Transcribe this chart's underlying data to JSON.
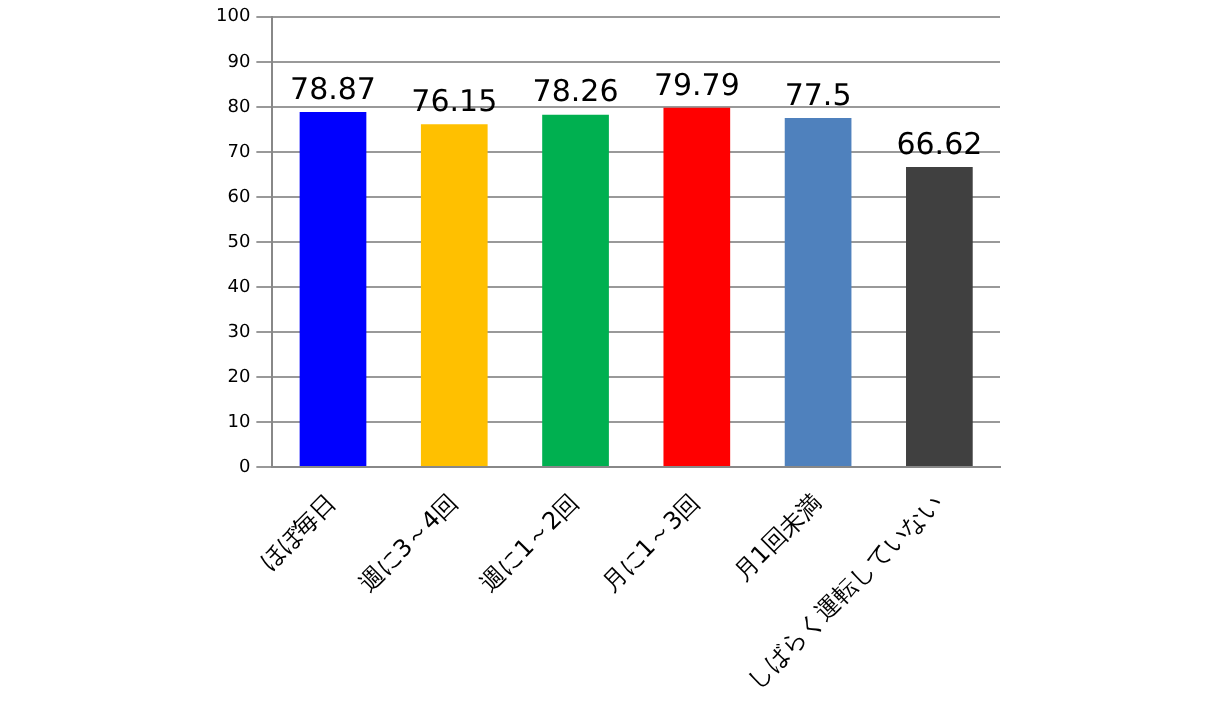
{
  "chart_data": {
    "type": "bar",
    "categories": [
      "ほぼ毎日",
      "週に3～4回",
      "週に1～2回",
      "月に1～3回",
      "月1回未満",
      "しばらく運転していない"
    ],
    "values": [
      78.87,
      76.15,
      78.26,
      79.79,
      77.5,
      66.62
    ],
    "colors": [
      "#0000ff",
      "#ffc000",
      "#00b050",
      "#ff0000",
      "#4f81bd",
      "#404040"
    ],
    "ylim": [
      0,
      100
    ],
    "yticks": [
      0,
      10,
      20,
      30,
      40,
      50,
      60,
      70,
      80,
      90,
      100
    ],
    "grid": "y",
    "legend": false,
    "data_labels": true
  }
}
